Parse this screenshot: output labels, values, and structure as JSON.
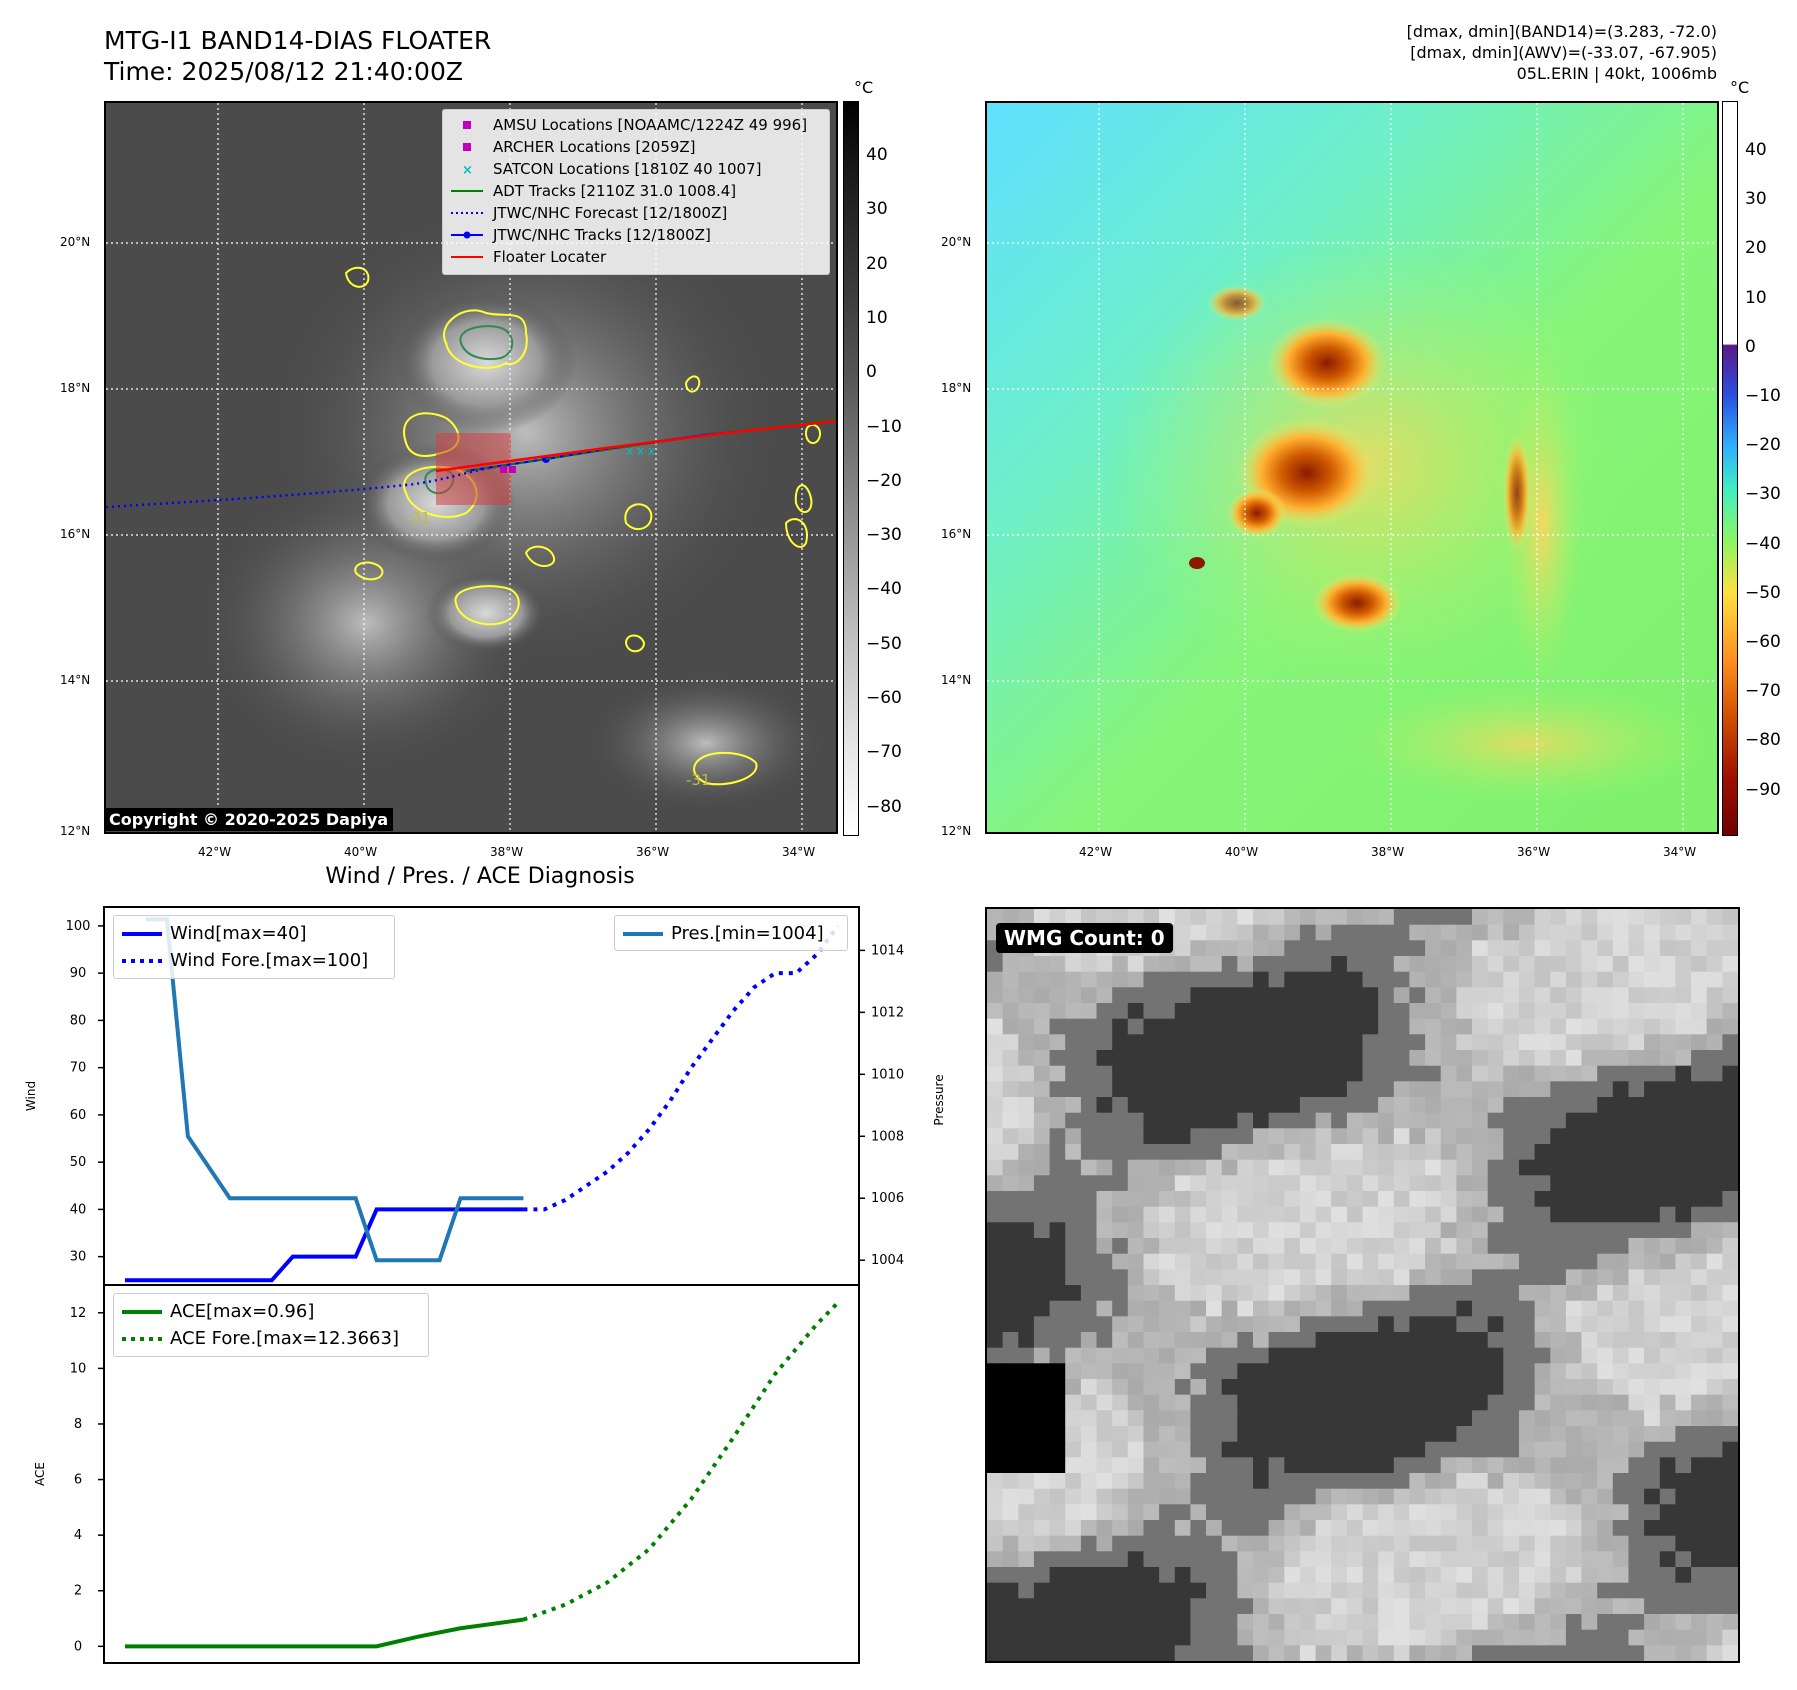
{
  "header": {
    "title_line1": "MTG-I1 BAND14-DIAS FLOATER",
    "title_line2": "Time: 2025/08/12 21:40:00Z",
    "info_line1": "[dmax, dmin](BAND14)=(3.283, -72.0)",
    "info_line2": "[dmax, dmin](AWV)=(-33.07, -67.905)",
    "info_line3": "05L.ERIN | 40kt, 1006mb"
  },
  "map_axes": {
    "lat_labels": [
      "20°N",
      "18°N",
      "16°N",
      "14°N",
      "12°N"
    ],
    "lon_labels": [
      "42°W",
      "40°W",
      "38°W",
      "36°W",
      "34°W"
    ]
  },
  "ir_panel": {
    "colorbar_unit": "°C",
    "colorbar_ticks": [
      "40",
      "30",
      "20",
      "10",
      "0",
      "−10",
      "−20",
      "−30",
      "−40",
      "−50",
      "−60",
      "−70",
      "−80"
    ],
    "copyright": "Copyright © 2020-2025 Dapiya",
    "contour_label": "-31",
    "legend": [
      {
        "label": "AMSU Locations [NOAAMC/1224Z 49 996]",
        "icon": "square-marker",
        "color": "#bf00bf"
      },
      {
        "label": "ARCHER Locations [2059Z]",
        "icon": "square-marker",
        "color": "#bf00bf"
      },
      {
        "label": "SATCON Locations [1810Z 40 1007]",
        "icon": "x-marker",
        "color": "#00bfbf"
      },
      {
        "label": "ADT Tracks [2110Z 31.0 1008.4]",
        "icon": "solid-line",
        "color": "#008000"
      },
      {
        "label": "JTWC/NHC Forecast [12/1800Z]",
        "icon": "dotted-line",
        "color": "#0000ff"
      },
      {
        "label": "JTWC/NHC Tracks [12/1800Z]",
        "icon": "line-dot",
        "color": "#0000ff"
      },
      {
        "label": "Floater Locater",
        "icon": "solid-line",
        "color": "#ff0000"
      }
    ]
  },
  "wv_panel": {
    "colorbar_unit": "°C",
    "colorbar_ticks": [
      "40",
      "30",
      "20",
      "10",
      "0",
      "−10",
      "−20",
      "−30",
      "−40",
      "−50",
      "−60",
      "−70",
      "−80",
      "−90"
    ]
  },
  "diag_panel": {
    "title": "Wind / Pres. / ACE Diagnosis",
    "wind_ylabel": "Wind",
    "pres_ylabel": "Pressure",
    "ace_ylabel": "ACE",
    "legend_wind": "Wind[max=40]",
    "legend_wind_fore": "Wind Fore.[max=100]",
    "legend_pres": "Pres.[min=1004]",
    "legend_ace": "ACE[max=0.96]",
    "legend_ace_fore": "ACE Fore.[max=12.3663]",
    "colors": {
      "wind": "#0000ff",
      "pres": "#1f77b4",
      "ace": "#008000"
    }
  },
  "wmg_panel": {
    "badge": "WMG Count: 0"
  },
  "chart_data": [
    {
      "type": "line",
      "title": "Wind / Pres. / ACE Diagnosis",
      "ylabel": "Wind",
      "ylim": [
        24,
        104
      ],
      "y_ticks": [
        30,
        40,
        50,
        60,
        70,
        80,
        90,
        100
      ],
      "series": [
        {
          "name": "Wind[max=40]",
          "x": [
            0,
            1,
            2,
            3,
            4,
            5,
            6,
            7,
            8,
            9,
            10,
            11,
            12,
            13,
            14,
            15,
            16,
            17,
            18,
            19
          ],
          "values": [
            25,
            25,
            25,
            25,
            25,
            25,
            25,
            25,
            30,
            30,
            30,
            30,
            40,
            40,
            40,
            40,
            40,
            40,
            40,
            40
          ]
        },
        {
          "name": "Wind Fore.[max=100]",
          "x": [
            19,
            20,
            21,
            22,
            23,
            24,
            25,
            26,
            27,
            28,
            29,
            30,
            31,
            32,
            33,
            34
          ],
          "values": [
            40,
            40,
            42,
            45,
            48,
            52,
            57,
            63,
            70,
            76,
            82,
            87,
            90,
            90,
            94,
            100
          ]
        }
      ]
    },
    {
      "type": "line",
      "ylabel": "Pressure",
      "ylim": [
        1003.2,
        1015.4
      ],
      "y_ticks": [
        1004,
        1006,
        1008,
        1010,
        1012,
        1014
      ],
      "series": [
        {
          "name": "Pres.[min=1004]",
          "x": [
            1,
            2,
            3,
            4,
            5,
            6,
            7,
            8,
            9,
            10,
            11,
            12,
            13,
            14,
            15,
            16,
            17,
            18,
            19
          ],
          "values": [
            1015,
            1015,
            1008,
            1007,
            1006,
            1006,
            1006,
            1006,
            1006,
            1006,
            1006,
            1004,
            1004,
            1004,
            1004,
            1006,
            1006,
            1006,
            1006
          ]
        }
      ]
    },
    {
      "type": "line",
      "ylabel": "ACE",
      "ylim": [
        -0.6,
        13.0
      ],
      "y_ticks": [
        0,
        2,
        4,
        6,
        8,
        10,
        12
      ],
      "series": [
        {
          "name": "ACE[max=0.96]",
          "x": [
            0,
            2,
            4,
            6,
            8,
            10,
            12,
            14,
            16,
            19
          ],
          "values": [
            0,
            0,
            0,
            0,
            0,
            0,
            0,
            0.35,
            0.65,
            0.96
          ]
        },
        {
          "name": "ACE Fore.[max=12.3663]",
          "x": [
            19,
            21,
            23,
            25,
            27,
            29,
            31,
            33,
            34
          ],
          "values": [
            0.96,
            1.5,
            2.3,
            3.5,
            5.3,
            7.5,
            9.8,
            11.6,
            12.3663
          ]
        }
      ]
    }
  ]
}
